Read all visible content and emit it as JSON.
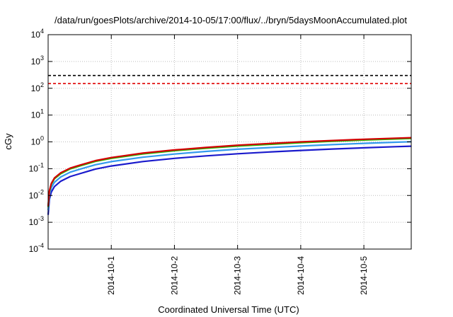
{
  "chart_data": {
    "type": "line",
    "title": "/data/run/goesPlots/archive/2014-10-05/17:00/flux/../bryn/5daysMoonAccumulated.plot",
    "xlabel": "Coordinated Universal Time (UTC)",
    "ylabel": "cGy",
    "x_unit": "days from start of 2014-09-30",
    "xlim": [
      0,
      5.75
    ],
    "xticks": [
      {
        "x": 1,
        "label": "2014-10-1"
      },
      {
        "x": 2,
        "label": "2014-10-2"
      },
      {
        "x": 3,
        "label": "2014-10-3"
      },
      {
        "x": 4,
        "label": "2014-10-4"
      },
      {
        "x": 5,
        "label": "2014-10-5"
      }
    ],
    "yscale": "log",
    "ylim": [
      0.0001,
      10000
    ],
    "yticks": [
      {
        "v": 0.0001,
        "base": "10",
        "exp": "-4"
      },
      {
        "v": 0.001,
        "base": "10",
        "exp": "-3"
      },
      {
        "v": 0.01,
        "base": "10",
        "exp": "-2"
      },
      {
        "v": 0.1,
        "base": "10",
        "exp": "-1"
      },
      {
        "v": 1,
        "base": "10",
        "exp": "0"
      },
      {
        "v": 10,
        "base": "10",
        "exp": "1"
      },
      {
        "v": 100,
        "base": "10",
        "exp": "2"
      },
      {
        "v": 1000,
        "base": "10",
        "exp": "3"
      },
      {
        "v": 10000,
        "base": "10",
        "exp": "4"
      }
    ],
    "grid": true,
    "thresholds": [
      {
        "y": 300,
        "color": "#000000",
        "style": "dashed"
      },
      {
        "y": 150,
        "color": "#e00000",
        "style": "dashed"
      }
    ],
    "series": [
      {
        "color": "#d40000",
        "x": [
          0,
          0.02,
          0.05,
          0.1,
          0.2,
          0.35,
          0.5,
          0.75,
          1,
          1.5,
          2,
          2.5,
          3,
          3.5,
          4,
          4.5,
          5,
          5.5,
          5.75
        ],
        "values": [
          0.004,
          0.015,
          0.028,
          0.045,
          0.07,
          0.105,
          0.135,
          0.2,
          0.26,
          0.38,
          0.5,
          0.62,
          0.75,
          0.87,
          1.0,
          1.12,
          1.25,
          1.37,
          1.43
        ]
      },
      {
        "color": "#22bb00",
        "x": [
          0,
          0.02,
          0.05,
          0.1,
          0.2,
          0.35,
          0.5,
          0.75,
          1,
          1.5,
          2,
          2.5,
          3,
          3.5,
          4,
          4.5,
          5,
          5.5,
          5.75
        ],
        "values": [
          0.0037,
          0.014,
          0.026,
          0.042,
          0.065,
          0.098,
          0.126,
          0.187,
          0.243,
          0.355,
          0.467,
          0.58,
          0.7,
          0.81,
          0.93,
          1.05,
          1.17,
          1.28,
          1.34
        ]
      },
      {
        "color": "#3399ee",
        "x": [
          0,
          0.02,
          0.05,
          0.1,
          0.2,
          0.35,
          0.5,
          0.75,
          1,
          1.5,
          2,
          2.5,
          3,
          3.5,
          4,
          4.5,
          5,
          5.5,
          5.75
        ],
        "values": [
          0.0028,
          0.0105,
          0.0195,
          0.031,
          0.049,
          0.074,
          0.095,
          0.14,
          0.183,
          0.268,
          0.352,
          0.44,
          0.53,
          0.61,
          0.7,
          0.79,
          0.88,
          0.97,
          1.01
        ]
      },
      {
        "color": "#1a1acc",
        "x": [
          0,
          0.02,
          0.05,
          0.1,
          0.2,
          0.35,
          0.5,
          0.75,
          1,
          1.5,
          2,
          2.5,
          3,
          3.5,
          4,
          4.5,
          5,
          5.5,
          5.75
        ],
        "values": [
          0.0019,
          0.0072,
          0.0134,
          0.0215,
          0.034,
          0.051,
          0.065,
          0.097,
          0.126,
          0.185,
          0.243,
          0.3,
          0.36,
          0.42,
          0.48,
          0.54,
          0.6,
          0.66,
          0.69
        ]
      }
    ]
  }
}
